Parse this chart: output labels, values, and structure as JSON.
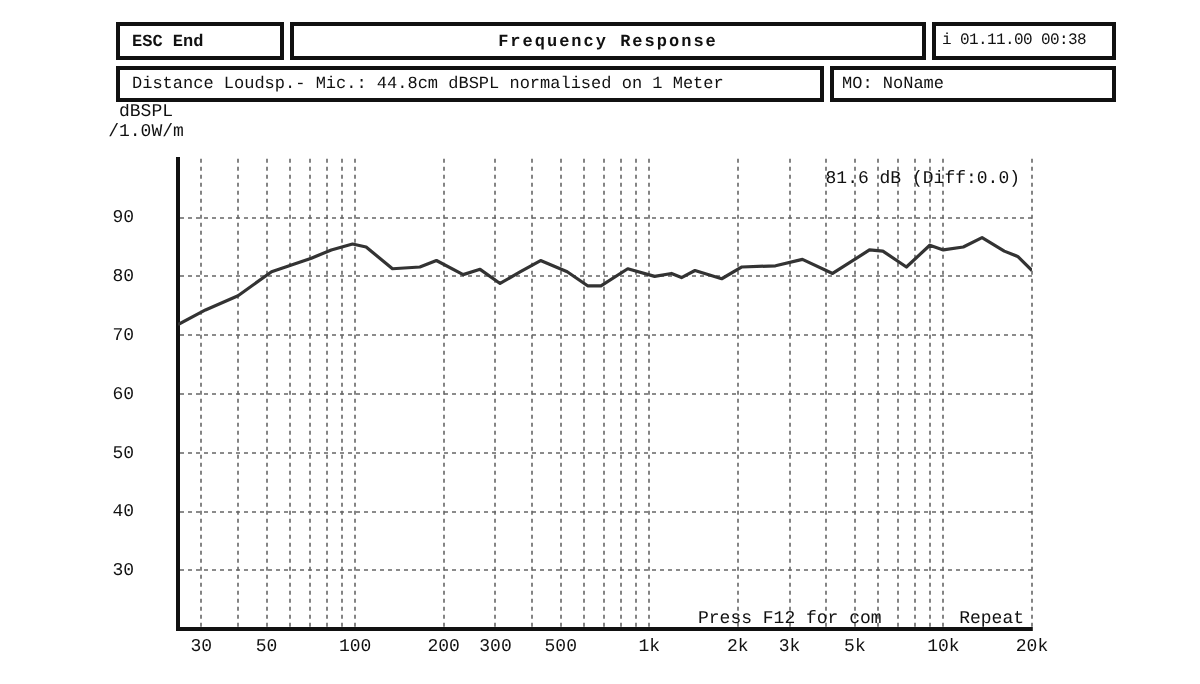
{
  "chart_data": {
    "type": "line",
    "title": "Frequency Response",
    "subtitle": "Distance Loudsp.- Mic.: 44.8cm dBSPL normalised on 1 Meter",
    "ylabel": "dBSPL\n/1.0W/m",
    "annotations": [
      "ESC End",
      "i 01.11.00 00:38",
      "MO: NoName",
      "81.6 dB (Diff:0.0)",
      "Press F12 for com",
      "Repeat"
    ],
    "x": [
      25,
      31,
      40,
      52,
      71,
      83,
      98,
      109,
      134,
      166,
      189,
      233,
      266,
      311,
      365,
      427,
      526,
      617,
      685,
      845,
      1043,
      1190,
      1287,
      1430,
      1763,
      2065,
      2686,
      3316,
      4199,
      5605,
      6223,
      7484,
      8986,
      9990,
      11680,
      13530,
      16100,
      17880,
      20000
    ],
    "series": [
      {
        "color": "#333333",
        "values": [
          71.8,
          74.3,
          76.7,
          80.8,
          83.1,
          84.5,
          85.5,
          85.0,
          81.3,
          81.6,
          82.7,
          80.3,
          81.2,
          78.8,
          80.8,
          82.7,
          80.8,
          78.4,
          78.4,
          81.3,
          80.0,
          80.5,
          79.8,
          81.0,
          79.6,
          81.6,
          81.8,
          82.9,
          80.5,
          84.5,
          84.3,
          81.6,
          85.3,
          84.5,
          85.0,
          86.6,
          84.3,
          83.4,
          81.0
        ]
      }
    ],
    "log": "x",
    "xlim": [
      25,
      20000
    ],
    "xticks": [
      30,
      {
        "value": 40,
        "label": null
      },
      50,
      {
        "value": 60,
        "label": null
      },
      {
        "value": 70,
        "label": null
      },
      {
        "value": 80,
        "label": null
      },
      {
        "value": 90,
        "label": null
      },
      100,
      200,
      300,
      {
        "value": 400,
        "label": null
      },
      500,
      {
        "value": 600,
        "label": null
      },
      {
        "value": 700,
        "label": null
      },
      {
        "value": 800,
        "label": null
      },
      {
        "value": 900,
        "label": null
      },
      {
        "value": 1000,
        "label": "1k"
      },
      {
        "value": 2000,
        "label": "2k"
      },
      {
        "value": 3000,
        "label": "3k"
      },
      {
        "value": 4000,
        "label": null
      },
      {
        "value": 5000,
        "label": "5k"
      },
      {
        "value": 6000,
        "label": null
      },
      {
        "value": 7000,
        "label": null
      },
      {
        "value": 8000,
        "label": null
      },
      {
        "value": 9000,
        "label": null
      },
      {
        "value": 10000,
        "label": "10k"
      },
      {
        "value": 20000,
        "label": "20k"
      }
    ],
    "ylim": [
      20,
      100
    ],
    "yticks": [
      30,
      40,
      50,
      60,
      70,
      80,
      90
    ],
    "grid": true,
    "legend": false,
    "marker": "none",
    "line_style": "solid"
  }
}
